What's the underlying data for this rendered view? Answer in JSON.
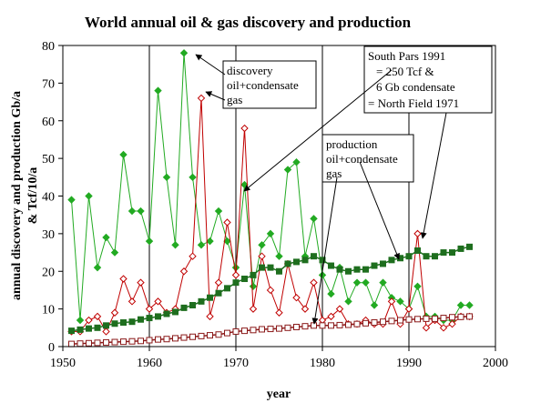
{
  "chart_data": {
    "type": "line",
    "title": "World annual oil & gas discovery and production",
    "xlabel": "year",
    "ylabel_line1": "annual discovery and production Gb/a",
    "ylabel_line2": "& Tcf/10/a",
    "xlim": [
      1950,
      2000
    ],
    "ylim": [
      0,
      80
    ],
    "x_ticks": [
      1950,
      1960,
      1970,
      1980,
      1990,
      2000
    ],
    "y_ticks": [
      0,
      10,
      20,
      30,
      40,
      50,
      60,
      70,
      80
    ],
    "grid": "vertical",
    "colors": {
      "discovery_oil": "#22aa22",
      "discovery_gas": "#c00000",
      "production_oil": "#1e6e1e",
      "production_gas": "#8b1a1a"
    },
    "series": [
      {
        "key": "discovery_oil",
        "x": [
          1951,
          1952,
          1953,
          1954,
          1955,
          1956,
          1957,
          1958,
          1959,
          1960,
          1961,
          1962,
          1963,
          1964,
          1965,
          1966,
          1967,
          1968,
          1969,
          1970,
          1971,
          1972,
          1973,
          1974,
          1975,
          1976,
          1977,
          1978,
          1979,
          1980,
          1981,
          1982,
          1983,
          1984,
          1985,
          1986,
          1987,
          1988,
          1989,
          1990,
          1991,
          1992,
          1993,
          1994,
          1995,
          1996,
          1997
        ],
        "values": [
          39,
          7,
          40,
          21,
          29,
          25,
          51,
          36,
          36,
          28,
          68,
          45,
          27,
          78,
          45,
          27,
          28,
          36,
          28,
          21,
          43,
          16,
          27,
          30,
          24,
          47,
          49,
          24,
          34,
          19,
          14,
          21,
          12,
          17,
          17,
          11,
          17,
          13,
          12,
          10,
          16,
          8,
          8,
          7,
          7,
          11,
          11
        ]
      },
      {
        "key": "discovery_gas",
        "x": [
          1951,
          1952,
          1953,
          1954,
          1955,
          1956,
          1957,
          1958,
          1959,
          1960,
          1961,
          1962,
          1963,
          1964,
          1965,
          1966,
          1967,
          1968,
          1969,
          1970,
          1971,
          1972,
          1973,
          1974,
          1975,
          1976,
          1977,
          1978,
          1979,
          1980,
          1981,
          1982,
          1983,
          1984,
          1985,
          1986,
          1987,
          1988,
          1989,
          1990,
          1991,
          1992,
          1993,
          1994,
          1995,
          1996,
          1997
        ],
        "values": [
          4,
          4,
          7,
          8,
          4,
          9,
          18,
          12,
          17,
          10,
          12,
          9,
          10,
          20,
          24,
          66,
          8,
          17,
          33,
          19,
          58,
          10,
          24,
          15,
          9,
          22,
          13,
          10,
          17,
          7,
          8,
          10,
          6,
          6,
          7,
          6,
          6,
          12,
          6,
          10,
          30,
          5,
          7,
          5,
          6,
          8,
          8
        ]
      },
      {
        "key": "production_oil",
        "x": [
          1951,
          1952,
          1953,
          1954,
          1955,
          1956,
          1957,
          1958,
          1959,
          1960,
          1961,
          1962,
          1963,
          1964,
          1965,
          1966,
          1967,
          1968,
          1969,
          1970,
          1971,
          1972,
          1973,
          1974,
          1975,
          1976,
          1977,
          1978,
          1979,
          1980,
          1981,
          1982,
          1983,
          1984,
          1985,
          1986,
          1987,
          1988,
          1989,
          1990,
          1991,
          1992,
          1993,
          1994,
          1995,
          1996,
          1997
        ],
        "values": [
          4.2,
          4.5,
          4.8,
          5.0,
          5.6,
          6.1,
          6.4,
          6.6,
          7.2,
          7.6,
          8.0,
          8.7,
          9.2,
          10.3,
          11.0,
          12.0,
          13.0,
          14.2,
          15.5,
          17.0,
          18.0,
          19.0,
          21.0,
          21.0,
          20.0,
          22.0,
          22.5,
          23.0,
          24.0,
          23.0,
          21.5,
          20.5,
          20.0,
          20.5,
          20.5,
          21.5,
          22.0,
          23.0,
          23.5,
          24.0,
          25.5,
          24.0,
          24.0,
          25.0,
          25.0,
          26.0,
          26.5
        ]
      },
      {
        "key": "production_gas",
        "x": [
          1951,
          1952,
          1953,
          1954,
          1955,
          1956,
          1957,
          1958,
          1959,
          1960,
          1961,
          1962,
          1963,
          1964,
          1965,
          1966,
          1967,
          1968,
          1969,
          1970,
          1971,
          1972,
          1973,
          1974,
          1975,
          1976,
          1977,
          1978,
          1979,
          1980,
          1981,
          1982,
          1983,
          1984,
          1985,
          1986,
          1987,
          1988,
          1989,
          1990,
          1991,
          1992,
          1993,
          1994,
          1995,
          1996,
          1997
        ],
        "values": [
          0.7,
          0.8,
          0.9,
          1.0,
          1.1,
          1.2,
          1.3,
          1.4,
          1.5,
          1.7,
          1.9,
          2.0,
          2.2,
          2.4,
          2.6,
          2.8,
          3.0,
          3.2,
          3.6,
          4.0,
          4.2,
          4.4,
          4.6,
          4.7,
          4.8,
          5.0,
          5.2,
          5.4,
          5.6,
          5.6,
          5.6,
          5.7,
          5.8,
          6.0,
          6.2,
          6.4,
          6.6,
          6.8,
          7.0,
          7.2,
          7.3,
          7.4,
          7.4,
          7.6,
          7.8,
          7.9,
          8.0
        ]
      }
    ],
    "annotations": {
      "discovery": {
        "lines": [
          "discovery",
          "oil+condensate",
          "gas"
        ]
      },
      "production": {
        "lines": [
          "production",
          "oil+condensate",
          "gas"
        ]
      },
      "south_pars": {
        "lines": [
          "South Pars 1991",
          "= 250 Tcf &",
          "6 Gb condensate",
          "= North Field 1971"
        ]
      }
    }
  }
}
